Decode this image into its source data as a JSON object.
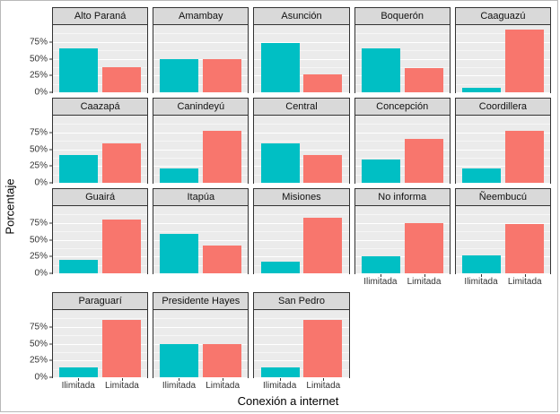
{
  "chart_data": {
    "type": "bar",
    "title": "",
    "xlabel": "Conexión a internet",
    "ylabel": "Porcentaje",
    "categories": [
      "Ilimitada",
      "Limitada"
    ],
    "colors": [
      "#00BFC4",
      "#F8766D"
    ],
    "ylim": [
      0,
      100
    ],
    "yticks": [
      {
        "value": 0,
        "label": "0%"
      },
      {
        "value": 25,
        "label": "25%"
      },
      {
        "value": 50,
        "label": "50%"
      },
      {
        "value": 75,
        "label": "75%"
      }
    ],
    "grid": "white major and minor horizontal gridlines on gray panels",
    "legend": "none",
    "facet_columns": 5,
    "facets": [
      {
        "title": "Alto Paraná",
        "values": [
          65,
          37
        ]
      },
      {
        "title": "Amambay",
        "values": [
          50,
          50
        ]
      },
      {
        "title": "Asunción",
        "values": [
          74,
          27
        ]
      },
      {
        "title": "Boquerón",
        "values": [
          65,
          36
        ]
      },
      {
        "title": "Caaguazú",
        "values": [
          7,
          93
        ]
      },
      {
        "title": "Caazapá",
        "values": [
          41,
          59
        ]
      },
      {
        "title": "Canindeyú",
        "values": [
          22,
          78
        ]
      },
      {
        "title": "Central",
        "values": [
          59,
          41
        ]
      },
      {
        "title": "Concepción",
        "values": [
          35,
          65
        ]
      },
      {
        "title": "Coordillera",
        "values": [
          22,
          78
        ]
      },
      {
        "title": "Guairá",
        "values": [
          20,
          80
        ]
      },
      {
        "title": "Itapúa",
        "values": [
          59,
          42
        ]
      },
      {
        "title": "Misiones",
        "values": [
          17,
          83
        ]
      },
      {
        "title": "No informa",
        "values": [
          25,
          75
        ]
      },
      {
        "title": "Ñeembucú",
        "values": [
          27,
          73
        ]
      },
      {
        "title": "Paraguarí",
        "values": [
          15,
          85
        ]
      },
      {
        "title": "Presidente Hayes",
        "values": [
          50,
          50
        ]
      },
      {
        "title": "San Pedro",
        "values": [
          15,
          85
        ]
      }
    ]
  }
}
